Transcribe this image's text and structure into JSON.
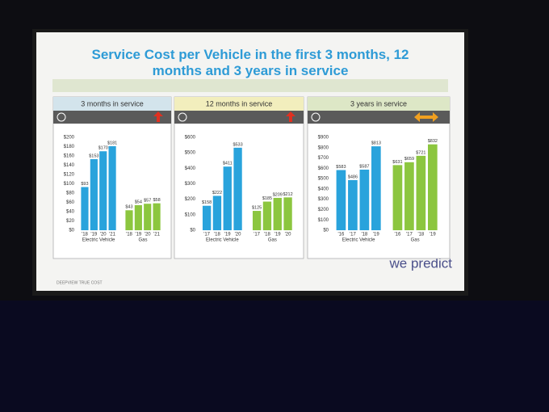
{
  "slide_title": "Service Cost per Vehicle in the first 3 months, 12 months and 3 years in service",
  "footer_note": "DEEPVIEW TRUE COST",
  "brand": "we predict",
  "chart_data": [
    {
      "type": "bar",
      "title": "3 months in service",
      "categories": [
        "'18",
        "'19",
        "'20",
        "'21"
      ],
      "series": [
        {
          "name": "Electric Vehicle",
          "color": "#29a3dc",
          "values": [
            93,
            153,
            170,
            181
          ],
          "value_labels": [
            "$93",
            "$153",
            "$170",
            "$181"
          ]
        },
        {
          "name": "Gas",
          "color": "#8cc63f",
          "values": [
            43,
            54,
            57,
            58
          ],
          "value_labels": [
            "$43",
            "$54",
            "$57",
            "$58"
          ]
        }
      ],
      "ylim": [
        0,
        200
      ],
      "yticks": [
        {
          "value": 0,
          "label": "$0"
        },
        {
          "value": 20,
          "label": "$20"
        },
        {
          "value": 40,
          "label": "$40"
        },
        {
          "value": 60,
          "label": "$60"
        },
        {
          "value": 80,
          "label": "$80"
        },
        {
          "value": 100,
          "label": "$100"
        },
        {
          "value": 120,
          "label": "$120"
        },
        {
          "value": 140,
          "label": "$140"
        },
        {
          "value": 160,
          "label": "$160"
        },
        {
          "value": 180,
          "label": "$180"
        },
        {
          "value": 200,
          "label": "$200"
        }
      ],
      "grid": false,
      "header_color": "#d3e4ec"
    },
    {
      "type": "bar",
      "title": "12 months in service",
      "categories": [
        "'17",
        "'18",
        "'19",
        "'20"
      ],
      "series": [
        {
          "name": "Electric Vehicle",
          "color": "#29a3dc",
          "values": [
            158,
            222,
            411,
            533
          ],
          "value_labels": [
            "$158",
            "$222",
            "$411",
            "$533"
          ]
        },
        {
          "name": "Gas",
          "color": "#8cc63f",
          "values": [
            125,
            185,
            209,
            212
          ],
          "value_labels": [
            "$125",
            "$185",
            "$209",
            "$212"
          ]
        }
      ],
      "ylim": [
        0,
        600
      ],
      "yticks": [
        {
          "value": 0,
          "label": "$0"
        },
        {
          "value": 100,
          "label": "$100"
        },
        {
          "value": 200,
          "label": "$200"
        },
        {
          "value": 300,
          "label": "$300"
        },
        {
          "value": 400,
          "label": "$400"
        },
        {
          "value": 500,
          "label": "$500"
        },
        {
          "value": 600,
          "label": "$600"
        }
      ],
      "grid": false,
      "header_color": "#f2eebd"
    },
    {
      "type": "bar",
      "title": "3 years in service",
      "categories": [
        "'16",
        "'17",
        "'18",
        "'19"
      ],
      "series": [
        {
          "name": "Electric Vehicle",
          "color": "#29a3dc",
          "values": [
            583,
            486,
            587,
            813
          ],
          "value_labels": [
            "$583",
            "$486",
            "$587",
            "$813"
          ]
        },
        {
          "name": "Gas",
          "color": "#8cc63f",
          "values": [
            631,
            659,
            721,
            832
          ],
          "value_labels": [
            "$631",
            "$659",
            "$721",
            "$832"
          ]
        }
      ],
      "ylim": [
        0,
        900
      ],
      "yticks": [
        {
          "value": 0,
          "label": "$0"
        },
        {
          "value": 100,
          "label": "$100"
        },
        {
          "value": 200,
          "label": "$200"
        },
        {
          "value": 300,
          "label": "$300"
        },
        {
          "value": 400,
          "label": "$400"
        },
        {
          "value": 500,
          "label": "$500"
        },
        {
          "value": 600,
          "label": "$600"
        },
        {
          "value": 700,
          "label": "$700"
        },
        {
          "value": 800,
          "label": "$800"
        },
        {
          "value": 900,
          "label": "$900"
        }
      ],
      "grid": false,
      "header_color": "#dde7c6"
    }
  ]
}
